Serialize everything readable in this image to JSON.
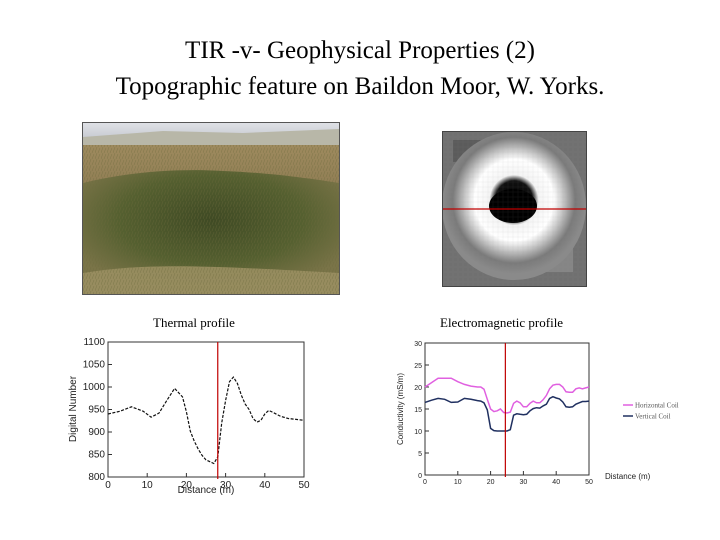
{
  "title": {
    "line1": "TIR -v- Geophysical Properties (2)",
    "line2": "Topographic feature on Baildon Moor, W. Yorks."
  },
  "captions": {
    "thermal": "Thermal profile",
    "em": "Electromagnetic profile"
  },
  "icons": {
    "photo": "moorland-hollow-photo",
    "em_image": "em-anomaly-ring-image"
  },
  "colors": {
    "marker": "#c00000",
    "horizontal_coil": "#e060e0",
    "vertical_coil": "#203060"
  },
  "chart_data": [
    {
      "type": "line",
      "title": "",
      "xlabel": "Distance (m)",
      "ylabel": "Digital Number",
      "xlim": [
        0,
        50
      ],
      "ylim": [
        800,
        1100
      ],
      "xticks": [
        "0",
        "10",
        "20",
        "30",
        "40",
        "50"
      ],
      "yticks": [
        "800",
        "850",
        "900",
        "950",
        "1000",
        "1050",
        "1100"
      ],
      "marker_x": 28,
      "series": [
        {
          "name": "",
          "x": [
            0,
            3,
            6,
            9,
            11,
            13,
            15,
            17,
            19,
            20,
            21,
            22,
            23,
            24,
            25,
            26,
            27,
            28,
            29,
            30,
            31,
            32,
            33,
            34,
            35,
            36,
            37,
            38,
            39,
            40,
            41,
            42,
            44,
            46,
            48,
            50
          ],
          "y": [
            940,
            946,
            956,
            946,
            933,
            942,
            970,
            997,
            978,
            945,
            902,
            880,
            862,
            848,
            838,
            834,
            830,
            845,
            920,
            970,
            1012,
            1022,
            1008,
            982,
            962,
            950,
            930,
            922,
            926,
            940,
            948,
            944,
            935,
            930,
            928,
            926
          ]
        }
      ]
    },
    {
      "type": "line",
      "title": "",
      "xlabel": "Distance (m)",
      "ylabel": "Conductivity (mS/m)",
      "xlim": [
        0,
        50
      ],
      "ylim": [
        0,
        30
      ],
      "xticks": [
        "0",
        "10",
        "20",
        "30",
        "40",
        "50"
      ],
      "yticks": [
        "0",
        "5",
        "10",
        "15",
        "20",
        "25",
        "30"
      ],
      "marker_x": 24.5,
      "series": [
        {
          "name": "Horizontal Coil",
          "x": [
            0,
            2,
            4,
            6,
            8,
            10,
            12,
            14,
            16,
            17,
            18,
            19,
            20,
            21,
            22,
            23,
            24,
            25,
            26,
            27,
            28,
            29,
            30,
            31,
            32,
            33,
            34,
            35,
            36,
            37,
            38,
            39,
            40,
            41,
            42,
            43,
            44,
            45,
            46,
            47,
            48,
            49,
            50
          ],
          "y": [
            20,
            21,
            22,
            22,
            22,
            21.2,
            20.6,
            20.2,
            20,
            20,
            19.5,
            17.2,
            15,
            14.4,
            14.6,
            15,
            14.2,
            14.1,
            14.3,
            16.3,
            16.8,
            16.4,
            15.5,
            15.5,
            16.3,
            16.8,
            16.4,
            16.4,
            17.1,
            18.1,
            19.6,
            20.4,
            20.6,
            20.6,
            20,
            18.9,
            18.8,
            18.8,
            19.6,
            19.8,
            19.6,
            19.8,
            20
          ]
        },
        {
          "name": "Vertical Coil",
          "x": [
            0,
            2,
            4,
            6,
            8,
            10,
            12,
            14,
            16,
            17,
            18,
            19,
            20,
            21,
            22,
            23,
            24,
            25,
            26,
            27,
            28,
            29,
            30,
            31,
            32,
            33,
            34,
            35,
            36,
            37,
            38,
            39,
            40,
            41,
            42,
            43,
            44,
            45,
            46,
            47,
            48,
            49,
            50
          ],
          "y": [
            16.5,
            17,
            17.4,
            17.2,
            16.5,
            16.6,
            17.4,
            17.2,
            16.9,
            16.8,
            16.4,
            14.8,
            10.6,
            10.1,
            10,
            10,
            10,
            10,
            10.3,
            13.6,
            13.9,
            13.8,
            13.7,
            13.8,
            14.6,
            15.1,
            15.3,
            15.2,
            15.7,
            16.1,
            17.4,
            17.8,
            17.5,
            17.3,
            16.6,
            15.5,
            15.4,
            15.5,
            16.1,
            16.4,
            16.7,
            16.7,
            16.8
          ]
        }
      ]
    }
  ]
}
